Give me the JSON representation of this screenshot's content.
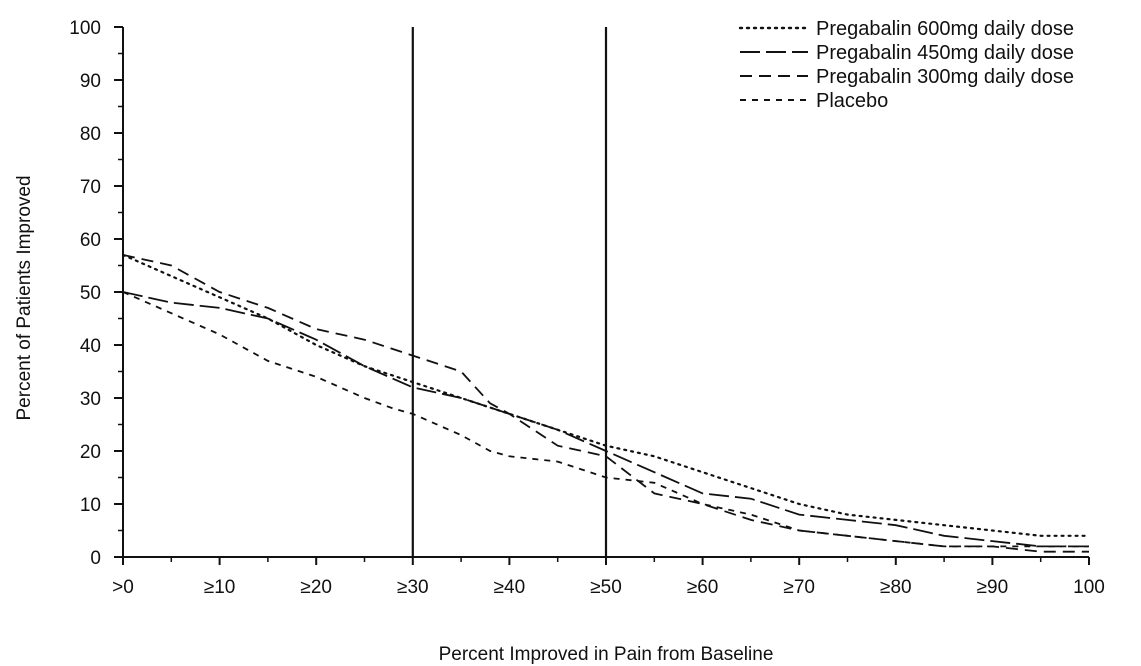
{
  "chart_data": {
    "type": "line",
    "title": "",
    "xlabel": "Percent Improved in Pain from Baseline",
    "ylabel": "Percent of Patients Improved",
    "xlim": [
      0,
      100
    ],
    "ylim": [
      0,
      100
    ],
    "x_tick_labels": [
      ">0",
      "≥10",
      "≥20",
      "≥30",
      "≥40",
      "≥50",
      "≥60",
      "≥70",
      "≥80",
      "≥90",
      "100"
    ],
    "y_tick_labels": [
      "0",
      "10",
      "20",
      "30",
      "40",
      "50",
      "60",
      "70",
      "80",
      "90",
      "100"
    ],
    "reference_lines_x": [
      30,
      50
    ],
    "legend_position": "top-right",
    "series": [
      {
        "name": "Pregabalin 600mg daily dose",
        "style": "dotted",
        "x": [
          0,
          5,
          10,
          15,
          20,
          25,
          30,
          35,
          40,
          45,
          50,
          55,
          60,
          65,
          70,
          75,
          80,
          85,
          90,
          95,
          100
        ],
        "y": [
          57,
          53,
          49,
          45,
          40,
          36,
          33,
          30,
          27,
          24,
          21,
          19,
          16,
          13,
          10,
          8,
          7,
          6,
          5,
          4,
          4
        ]
      },
      {
        "name": "Pregabalin 450mg daily dose",
        "style": "long-dash",
        "x": [
          0,
          5,
          10,
          15,
          20,
          25,
          30,
          35,
          40,
          45,
          50,
          55,
          60,
          65,
          70,
          75,
          80,
          85,
          90,
          95,
          100
        ],
        "y": [
          50,
          48,
          47,
          45,
          41,
          36,
          32,
          30,
          27,
          24,
          20,
          16,
          12,
          11,
          8,
          7,
          6,
          4,
          3,
          2,
          2
        ]
      },
      {
        "name": "Pregabalin 300mg daily dose",
        "style": "dashed",
        "x": [
          0,
          5,
          10,
          15,
          20,
          25,
          30,
          35,
          38,
          40,
          45,
          50,
          55,
          60,
          65,
          70,
          75,
          80,
          85,
          90,
          95,
          100
        ],
        "y": [
          57,
          55,
          50,
          47,
          43,
          41,
          38,
          35,
          29,
          27,
          21,
          19,
          12,
          10,
          7,
          5,
          4,
          3,
          2,
          2,
          1,
          1
        ]
      },
      {
        "name": "Placebo",
        "style": "short-dash",
        "x": [
          0,
          5,
          10,
          15,
          20,
          25,
          28,
          30,
          35,
          38,
          40,
          45,
          50,
          55,
          60,
          65,
          70,
          75,
          80,
          85,
          90,
          95,
          100
        ],
        "y": [
          50,
          46,
          42,
          37,
          34,
          30,
          28,
          27,
          23,
          20,
          19,
          18,
          15,
          14,
          10,
          8,
          5,
          4,
          3,
          2,
          2,
          2,
          2
        ]
      }
    ]
  }
}
